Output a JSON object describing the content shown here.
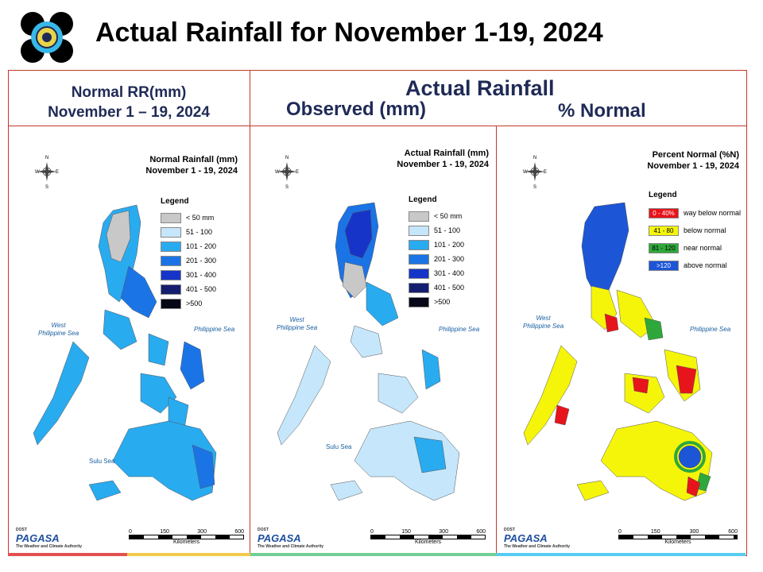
{
  "title": "Actual Rainfall for November 1-19, 2024",
  "header": {
    "normal_line1": "Normal RR(mm)",
    "normal_line2": "November 1 – 19, 2024",
    "actual": "Actual Rainfall",
    "observed": "Observed (mm)",
    "percent": "% Normal"
  },
  "panels": [
    {
      "id": "normal",
      "title_line1": "Normal Rainfall (mm)",
      "title_line2": "November 1 - 19, 2024",
      "legend_title": "Legend",
      "legend": [
        {
          "label": "< 50 mm",
          "color": "#c8c8c8"
        },
        {
          "label": "51 - 100",
          "color": "#c6e6fb"
        },
        {
          "label": "101 - 200",
          "color": "#29abf0"
        },
        {
          "label": "201 - 300",
          "color": "#1b74e6"
        },
        {
          "label": "301 - 400",
          "color": "#1635c8"
        },
        {
          "label": "401 - 500",
          "color": "#151e6e"
        },
        {
          "label": ">500",
          "color": "#060818"
        }
      ]
    },
    {
      "id": "actual",
      "title_line1": "Actual Rainfall (mm)",
      "title_line2": "November 1 - 19, 2024",
      "legend_title": "Legend",
      "legend": [
        {
          "label": "< 50 mm",
          "color": "#c8c8c8"
        },
        {
          "label": "51 - 100",
          "color": "#c6e6fb"
        },
        {
          "label": "101 - 200",
          "color": "#29abf0"
        },
        {
          "label": "201 - 300",
          "color": "#1b74e6"
        },
        {
          "label": "301 - 400",
          "color": "#1635c8"
        },
        {
          "label": "401 - 500",
          "color": "#151e6e"
        },
        {
          "label": ">500",
          "color": "#060818"
        }
      ]
    },
    {
      "id": "percent",
      "title_line1": "Percent Normal (%N)",
      "title_line2": "November 1 - 19, 2024",
      "legend_title": "Legend",
      "legend": [
        {
          "swatch": "0 - 40%",
          "label": "way below normal",
          "color": "#e8141b",
          "text_color": "#ffffff"
        },
        {
          "swatch": "41 - 80",
          "label": "below normal",
          "color": "#f5f50a",
          "text_color": "#000000"
        },
        {
          "swatch": "81 - 120",
          "label": "near normal",
          "color": "#2ea83a",
          "text_color": "#000000"
        },
        {
          "swatch": ">120",
          "label": "above normal",
          "color": "#1c55d6",
          "text_color": "#ffffff"
        }
      ]
    }
  ],
  "map_labels": {
    "west_sea_1": "West",
    "west_sea_2": "Philippine Sea",
    "philippine_sea": "Philippine Sea",
    "sulu_sea": "Sulu Sea",
    "compass_n": "N",
    "compass_s": "S",
    "compass_e": "E",
    "compass_w": "W",
    "scale_ticks": [
      "0",
      "150",
      "300",
      "600"
    ],
    "scale_unit": "Kilometers"
  },
  "branding": {
    "dost": "DOST",
    "pagasa": "PAGASA",
    "tagline": "The Weather and Climate Authority"
  },
  "bottom_bar_colors": [
    "#e35050",
    "#f2c94c",
    "#6fcf97",
    "#56ccf2"
  ]
}
